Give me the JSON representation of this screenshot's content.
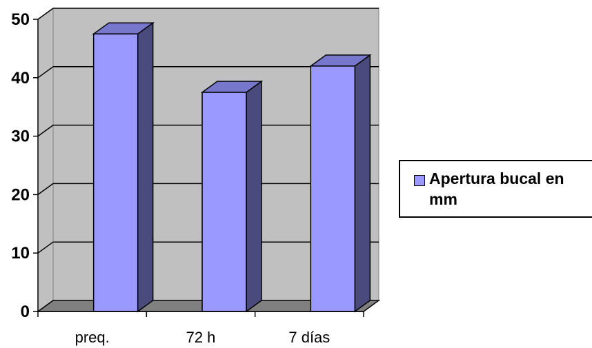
{
  "chart_data": {
    "type": "bar",
    "style": "3d-column",
    "categories": [
      "preq.",
      "72 h",
      "7 días"
    ],
    "series": [
      {
        "name": "Apertura bucal en mm",
        "values": [
          47.5,
          37.5,
          42
        ]
      }
    ],
    "ylim": [
      0,
      50
    ],
    "yticks": [
      0,
      10,
      20,
      30,
      40,
      50
    ],
    "grid": true,
    "legend": "right",
    "colors": {
      "bar_front": "#9999ff",
      "bar_side": "#4a4a7c",
      "bar_top": "#7777cc",
      "wall": "#c0c0c0",
      "floor": "#808080"
    }
  }
}
